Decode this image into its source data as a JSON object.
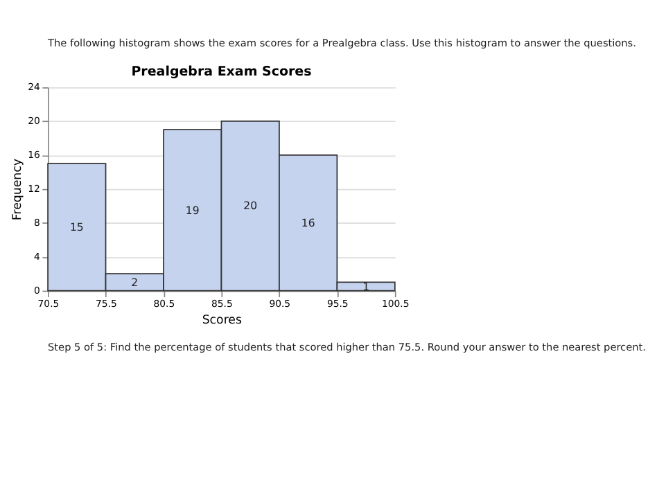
{
  "chart_data": {
    "type": "histogram",
    "title": "Prealgebra Exam Scores",
    "xlabel": "Scores",
    "ylabel": "Frequency",
    "bins": [
      70.5,
      75.5,
      80.5,
      85.5,
      90.5,
      95.5,
      100.5
    ],
    "values": [
      15,
      2,
      19,
      20,
      16,
      1
    ],
    "color": "#c5d3ee",
    "xlim": [
      70.5,
      100.5
    ],
    "xticks": [
      70.5,
      75.5,
      80.5,
      85.5,
      90.5,
      95.5,
      100.5
    ],
    "ylim": [
      0,
      24
    ],
    "yticks": [
      0,
      4,
      8,
      12,
      16,
      20,
      24
    ],
    "grid": "y",
    "data_labels": true,
    "annotations": [
      "The following histogram shows the exam scores for a Prealgebra class. Use this histogram to answer the questions.",
      "Step 5 of 5: Find the percentage of students that scored higher than 75.5. Round your answer to the nearest percent."
    ]
  }
}
